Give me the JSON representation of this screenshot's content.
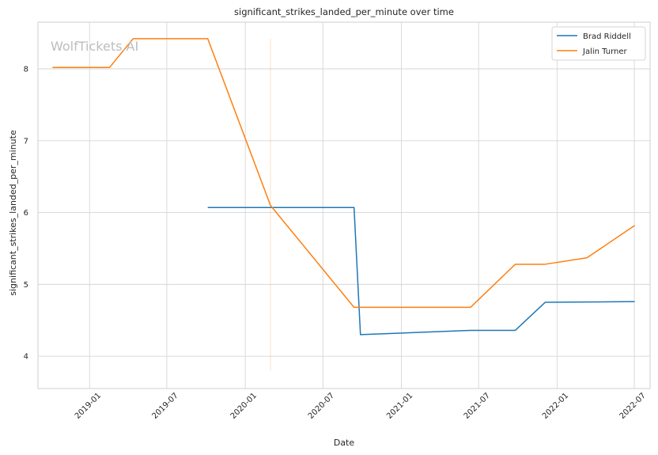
{
  "chart_data": {
    "type": "line",
    "title": "significant_strikes_landed_per_minute over time",
    "xlabel": "Date",
    "ylabel": "significant_strikes_landed_per_minute",
    "watermark": "WolfTickets.AI",
    "xlim": [
      "2018-09-02",
      "2022-08-07"
    ],
    "ylim": [
      3.55,
      8.65
    ],
    "x_ticks": [
      {
        "date": "2019-01-01",
        "label": "2019-01"
      },
      {
        "date": "2019-07-01",
        "label": "2019-07"
      },
      {
        "date": "2020-01-01",
        "label": "2020-01"
      },
      {
        "date": "2020-07-01",
        "label": "2020-07"
      },
      {
        "date": "2021-01-01",
        "label": "2021-01"
      },
      {
        "date": "2021-07-01",
        "label": "2021-07"
      },
      {
        "date": "2022-01-01",
        "label": "2022-01"
      },
      {
        "date": "2022-07-01",
        "label": "2022-07"
      }
    ],
    "y_ticks": [
      4,
      5,
      6,
      7,
      8
    ],
    "grid": true,
    "legend_position": "top-right",
    "series": [
      {
        "name": "Brad Riddell",
        "color": "#1f77b4",
        "points": [
          {
            "x": "2019-10-05",
            "y": 6.07
          },
          {
            "x": "2020-09-12",
            "y": 6.07
          },
          {
            "x": "2020-09-27",
            "y": 4.3
          },
          {
            "x": "2021-06-12",
            "y": 4.36
          },
          {
            "x": "2021-09-25",
            "y": 4.36
          },
          {
            "x": "2021-12-04",
            "y": 4.75
          },
          {
            "x": "2022-07-02",
            "y": 4.76
          }
        ]
      },
      {
        "name": "Jalin Turner",
        "color": "#ff7f0e",
        "points": [
          {
            "x": "2018-10-06",
            "y": 8.02
          },
          {
            "x": "2019-02-17",
            "y": 8.02
          },
          {
            "x": "2019-04-13",
            "y": 8.42
          },
          {
            "x": "2019-10-05",
            "y": 8.42
          },
          {
            "x": "2020-02-29",
            "y": 6.1
          },
          {
            "x": "2020-09-12",
            "y": 4.68
          },
          {
            "x": "2021-06-12",
            "y": 4.68
          },
          {
            "x": "2021-09-25",
            "y": 5.28
          },
          {
            "x": "2021-12-04",
            "y": 5.28
          },
          {
            "x": "2022-03-12",
            "y": 5.37
          },
          {
            "x": "2022-07-02",
            "y": 5.82
          }
        ]
      }
    ],
    "annotations": [
      {
        "type": "vline",
        "x": "2020-02-29",
        "y_from": 3.8,
        "y_to": 8.42,
        "color": "#ff7f0e",
        "opacity": 0.25
      }
    ]
  }
}
